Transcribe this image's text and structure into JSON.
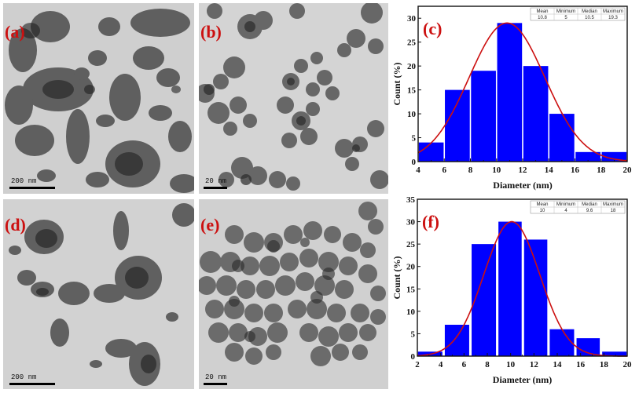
{
  "figure": {
    "panels": [
      {
        "id": "a",
        "label": "(a)",
        "type": "TEM image",
        "scale_bar": "200 nm"
      },
      {
        "id": "b",
        "label": "(b)",
        "type": "TEM image",
        "scale_bar": "20 nm"
      },
      {
        "id": "c",
        "label": "(c)",
        "type": "histogram"
      },
      {
        "id": "d",
        "label": "(d)",
        "type": "TEM image",
        "scale_bar": "200 nm"
      },
      {
        "id": "e",
        "label": "(e)",
        "type": "TEM image",
        "scale_bar": "20 nm"
      },
      {
        "id": "f",
        "label": "(f)",
        "type": "histogram"
      }
    ]
  },
  "colors": {
    "bar_fill": "#0000ff",
    "fit_curve": "#cc1010",
    "label_red": "#cc1010",
    "axis": "#111111"
  },
  "chart_data": [
    {
      "panel": "(c)",
      "type": "bar",
      "title": "",
      "xlabel": "Diameter (nm)",
      "ylabel": "Count (%)",
      "xlim": [
        4,
        20
      ],
      "ylim": [
        0,
        32.5
      ],
      "xticks": [
        "4",
        "6",
        "8",
        "10",
        "12",
        "14",
        "16",
        "18",
        "20"
      ],
      "yticks": [
        "0",
        "5",
        "10",
        "15",
        "20",
        "25",
        "30"
      ],
      "bins": [
        [
          4,
          6
        ],
        [
          6,
          8
        ],
        [
          8,
          10
        ],
        [
          10,
          12
        ],
        [
          12,
          14
        ],
        [
          14,
          16
        ],
        [
          16,
          18
        ],
        [
          18,
          20
        ]
      ],
      "categories": [
        "4-6",
        "6-8",
        "8-10",
        "10-12",
        "12-14",
        "14-16",
        "16-18",
        "18-20"
      ],
      "values": [
        4,
        15,
        19,
        29,
        20,
        10,
        2,
        2
      ],
      "fit": {
        "type": "gaussian",
        "center": 10.8,
        "peak": 29,
        "sigma": 2.9
      },
      "grid": false,
      "stats_table": {
        "headers": [
          "Mean",
          "Minimum",
          "Median",
          "Maximum"
        ],
        "values": [
          "10.8",
          "5",
          "10.5",
          "19.3"
        ]
      }
    },
    {
      "panel": "(f)",
      "type": "bar",
      "title": "",
      "xlabel": "Diameter (nm)",
      "ylabel": "Count (%)",
      "xlim": [
        2,
        20
      ],
      "ylim": [
        0,
        35
      ],
      "xticks": [
        "2",
        "4",
        "6",
        "8",
        "10",
        "12",
        "14",
        "16",
        "18",
        "20"
      ],
      "yticks": [
        "0",
        "5",
        "10",
        "15",
        "20",
        "25",
        "30",
        "35"
      ],
      "bins": [
        [
          2,
          4.2
        ],
        [
          4.3,
          6.5
        ],
        [
          6.6,
          8.8
        ],
        [
          8.9,
          11
        ],
        [
          11.1,
          13.2
        ],
        [
          13.3,
          15.5
        ],
        [
          15.6,
          17.7
        ],
        [
          17.8,
          20
        ]
      ],
      "categories": [
        "2-4.2",
        "4.3-6.5",
        "6.6-8.8",
        "8.9-11",
        "11.1-13.2",
        "13.3-15.5",
        "15.6-17.7",
        "17.8-20"
      ],
      "values": [
        1,
        7,
        25,
        30,
        26,
        6,
        4,
        1
      ],
      "fit": {
        "type": "gaussian",
        "center": 10.1,
        "peak": 30,
        "sigma": 2.4
      },
      "grid": false,
      "stats_table": {
        "headers": [
          "Mean",
          "Minimum",
          "Median",
          "Maximum"
        ],
        "values": [
          "10",
          "4",
          "9.6",
          "18"
        ]
      }
    }
  ]
}
